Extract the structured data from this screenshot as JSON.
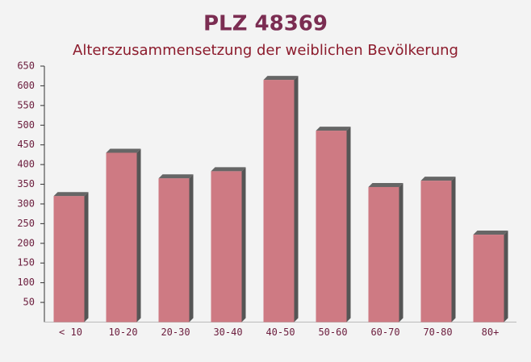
{
  "chart_data": {
    "type": "bar",
    "title": "PLZ 48369",
    "subtitle": "Alterszusammensetzung der weiblichen Bevölkerung",
    "categories": [
      "< 10",
      "10-20",
      "20-30",
      "30-40",
      "40-50",
      "50-60",
      "60-70",
      "70-80",
      "80+"
    ],
    "values": [
      320,
      430,
      365,
      383,
      615,
      486,
      343,
      359,
      222
    ],
    "color": "#c7646e",
    "ylim": [
      0,
      650
    ],
    "yticks": [
      50,
      100,
      150,
      200,
      250,
      300,
      350,
      400,
      450,
      500,
      550,
      600,
      650
    ]
  }
}
